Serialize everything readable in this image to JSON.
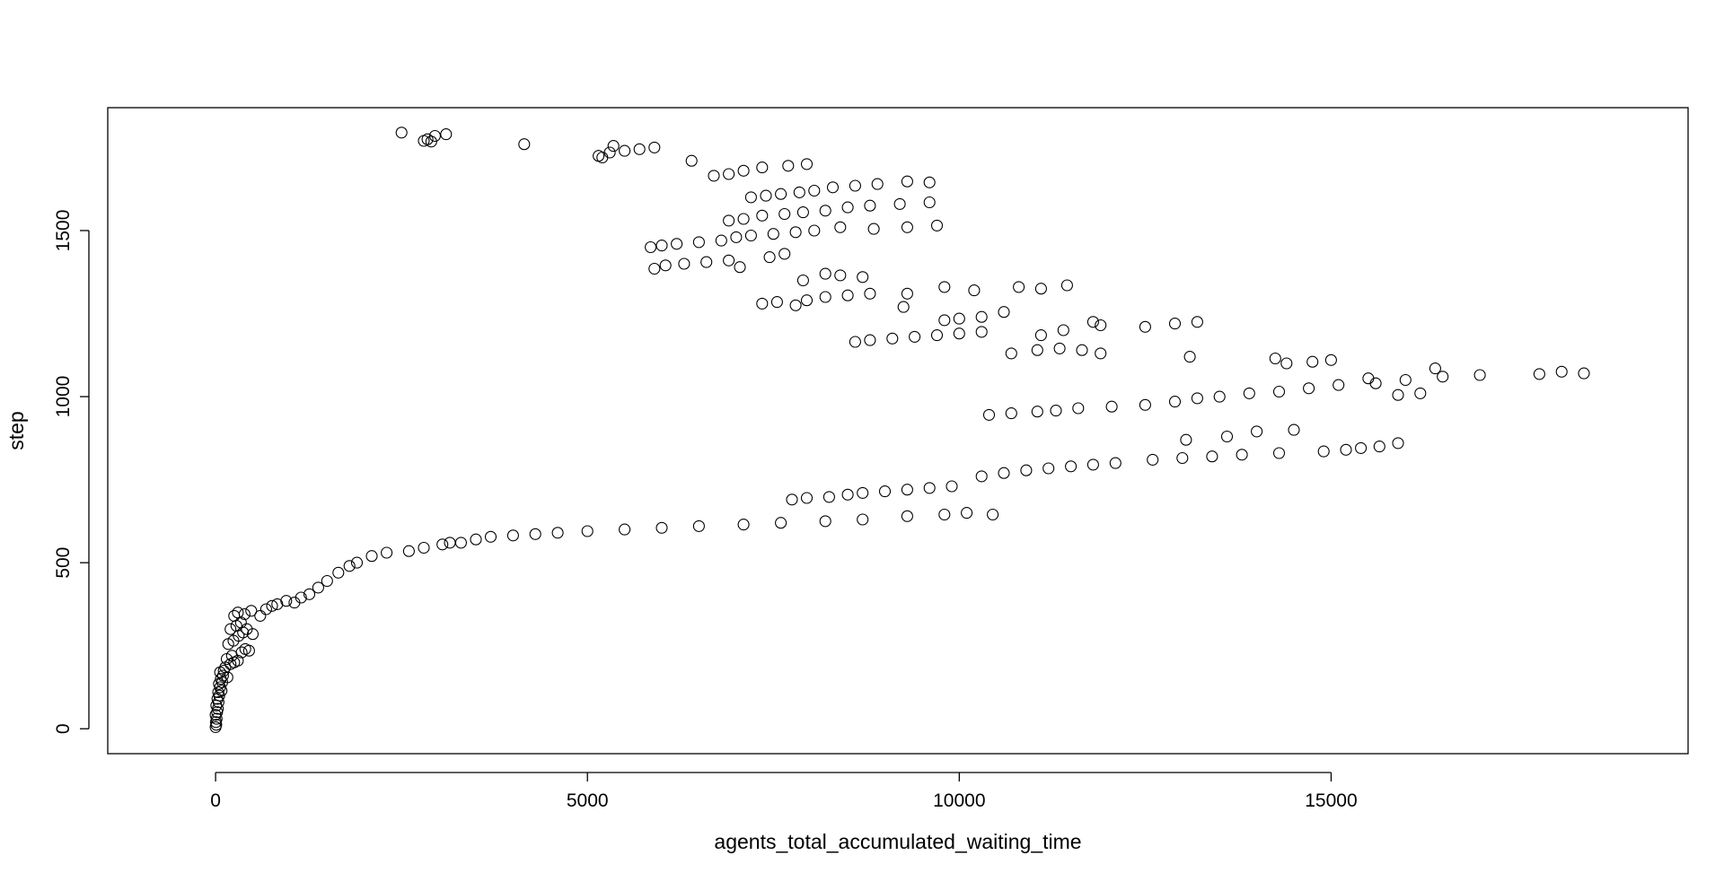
{
  "chart_data": {
    "type": "scatter",
    "title": "",
    "xlabel": "agents_total_accumulated_waiting_time",
    "ylabel": "step",
    "xlim": [
      -1450,
      19800
    ],
    "ylim": [
      -75,
      1870
    ],
    "xticks": [
      0,
      5000,
      10000,
      15000
    ],
    "xtick_labels": [
      "0",
      "5000",
      "10000",
      "15000"
    ],
    "yticks": [
      0,
      500,
      1000,
      1500
    ],
    "ytick_labels": [
      "0",
      "500",
      "1000",
      "1500"
    ],
    "grid": false,
    "legend": "none",
    "marker": "open-circle",
    "colors": {
      "points": "#000000",
      "axes": "#000000",
      "background": "#ffffff"
    },
    "series": [
      {
        "points": [
          [
            0,
            5
          ],
          [
            10,
            12
          ],
          [
            5,
            20
          ],
          [
            15,
            30
          ],
          [
            0,
            42
          ],
          [
            20,
            50
          ],
          [
            30,
            60
          ],
          [
            10,
            70
          ],
          [
            40,
            80
          ],
          [
            25,
            90
          ],
          [
            50,
            100
          ],
          [
            35,
            110
          ],
          [
            80,
            115
          ],
          [
            60,
            125
          ],
          [
            45,
            135
          ],
          [
            90,
            140
          ],
          [
            70,
            150
          ],
          [
            100,
            160
          ],
          [
            60,
            170
          ],
          [
            110,
            175
          ],
          [
            160,
            155
          ],
          [
            130,
            185
          ],
          [
            200,
            195
          ],
          [
            150,
            210
          ],
          [
            250,
            200
          ],
          [
            300,
            205
          ],
          [
            220,
            220
          ],
          [
            350,
            230
          ],
          [
            400,
            240
          ],
          [
            450,
            235
          ],
          [
            170,
            255
          ],
          [
            240,
            265
          ],
          [
            310,
            280
          ],
          [
            370,
            290
          ],
          [
            420,
            300
          ],
          [
            500,
            285
          ],
          [
            200,
            300
          ],
          [
            280,
            310
          ],
          [
            340,
            320
          ],
          [
            250,
            340
          ],
          [
            300,
            350
          ],
          [
            390,
            345
          ],
          [
            480,
            355
          ],
          [
            600,
            340
          ],
          [
            680,
            360
          ],
          [
            760,
            370
          ],
          [
            830,
            375
          ],
          [
            950,
            385
          ],
          [
            1060,
            380
          ],
          [
            1150,
            395
          ],
          [
            1260,
            405
          ],
          [
            1380,
            425
          ],
          [
            1500,
            445
          ],
          [
            1650,
            470
          ],
          [
            1800,
            490
          ],
          [
            1900,
            500
          ],
          [
            2100,
            520
          ],
          [
            2300,
            530
          ],
          [
            2600,
            535
          ],
          [
            2800,
            545
          ],
          [
            3050,
            555
          ],
          [
            3150,
            560
          ],
          [
            3300,
            560
          ],
          [
            3500,
            570
          ],
          [
            3700,
            578
          ],
          [
            4000,
            582
          ],
          [
            4300,
            586
          ],
          [
            4600,
            590
          ],
          [
            5000,
            595
          ],
          [
            5500,
            600
          ],
          [
            6000,
            605
          ],
          [
            6500,
            610
          ],
          [
            7100,
            615
          ],
          [
            7600,
            620
          ],
          [
            8200,
            625
          ],
          [
            8700,
            630
          ],
          [
            9300,
            640
          ],
          [
            9800,
            645
          ],
          [
            10100,
            650
          ],
          [
            10450,
            645
          ],
          [
            7750,
            690
          ],
          [
            7950,
            695
          ],
          [
            8250,
            698
          ],
          [
            8500,
            705
          ],
          [
            8700,
            710
          ],
          [
            9000,
            715
          ],
          [
            9300,
            720
          ],
          [
            9600,
            725
          ],
          [
            9900,
            730
          ],
          [
            10300,
            760
          ],
          [
            10600,
            770
          ],
          [
            10900,
            778
          ],
          [
            11200,
            784
          ],
          [
            11500,
            790
          ],
          [
            11800,
            795
          ],
          [
            12100,
            800
          ],
          [
            12600,
            810
          ],
          [
            13000,
            815
          ],
          [
            13400,
            820
          ],
          [
            13800,
            825
          ],
          [
            14300,
            830
          ],
          [
            14900,
            835
          ],
          [
            15200,
            840
          ],
          [
            15400,
            845
          ],
          [
            15650,
            850
          ],
          [
            15900,
            860
          ],
          [
            13050,
            870
          ],
          [
            13600,
            880
          ],
          [
            14000,
            895
          ],
          [
            14500,
            900
          ],
          [
            10400,
            945
          ],
          [
            10700,
            950
          ],
          [
            11050,
            955
          ],
          [
            11300,
            958
          ],
          [
            11600,
            965
          ],
          [
            12050,
            970
          ],
          [
            12500,
            975
          ],
          [
            12900,
            985
          ],
          [
            13200,
            995
          ],
          [
            13500,
            1000
          ],
          [
            13900,
            1010
          ],
          [
            14300,
            1015
          ],
          [
            14700,
            1025
          ],
          [
            15100,
            1035
          ],
          [
            15600,
            1040
          ],
          [
            16000,
            1050
          ],
          [
            16500,
            1060
          ],
          [
            17000,
            1065
          ],
          [
            17800,
            1068
          ],
          [
            18100,
            1075
          ],
          [
            18400,
            1070
          ],
          [
            16400,
            1085
          ],
          [
            16200,
            1010
          ],
          [
            15900,
            1005
          ],
          [
            15500,
            1055
          ],
          [
            14400,
            1100
          ],
          [
            14750,
            1105
          ],
          [
            15000,
            1110
          ],
          [
            14250,
            1115
          ],
          [
            13100,
            1120
          ],
          [
            12500,
            1210
          ],
          [
            12900,
            1220
          ],
          [
            13200,
            1225
          ],
          [
            11900,
            1215
          ],
          [
            11800,
            1225
          ],
          [
            11400,
            1200
          ],
          [
            11100,
            1185
          ],
          [
            10600,
            1255
          ],
          [
            10300,
            1240
          ],
          [
            10000,
            1235
          ],
          [
            9800,
            1230
          ],
          [
            8600,
            1165
          ],
          [
            8800,
            1170
          ],
          [
            9100,
            1175
          ],
          [
            9400,
            1180
          ],
          [
            9700,
            1185
          ],
          [
            10000,
            1190
          ],
          [
            10300,
            1195
          ],
          [
            10700,
            1130
          ],
          [
            11050,
            1140
          ],
          [
            11350,
            1145
          ],
          [
            11650,
            1140
          ],
          [
            11900,
            1130
          ],
          [
            11100,
            1325
          ],
          [
            10800,
            1330
          ],
          [
            11450,
            1335
          ],
          [
            10200,
            1320
          ],
          [
            9800,
            1330
          ],
          [
            9300,
            1310
          ],
          [
            9250,
            1270
          ],
          [
            8800,
            1310
          ],
          [
            8500,
            1305
          ],
          [
            8200,
            1300
          ],
          [
            7950,
            1290
          ],
          [
            7800,
            1275
          ],
          [
            7550,
            1285
          ],
          [
            7350,
            1280
          ],
          [
            5900,
            1385
          ],
          [
            6050,
            1395
          ],
          [
            6300,
            1400
          ],
          [
            6600,
            1405
          ],
          [
            6900,
            1410
          ],
          [
            7050,
            1390
          ],
          [
            7450,
            1420
          ],
          [
            7650,
            1430
          ],
          [
            7900,
            1350
          ],
          [
            8200,
            1370
          ],
          [
            8400,
            1365
          ],
          [
            8700,
            1360
          ],
          [
            5850,
            1450
          ],
          [
            6000,
            1455
          ],
          [
            6200,
            1460
          ],
          [
            6500,
            1465
          ],
          [
            6800,
            1470
          ],
          [
            7000,
            1480
          ],
          [
            7200,
            1485
          ],
          [
            7500,
            1490
          ],
          [
            7800,
            1495
          ],
          [
            8050,
            1500
          ],
          [
            8400,
            1510
          ],
          [
            8850,
            1505
          ],
          [
            9300,
            1510
          ],
          [
            9700,
            1515
          ],
          [
            6900,
            1530
          ],
          [
            7100,
            1535
          ],
          [
            7350,
            1545
          ],
          [
            7650,
            1550
          ],
          [
            7900,
            1555
          ],
          [
            8200,
            1560
          ],
          [
            8500,
            1570
          ],
          [
            8800,
            1575
          ],
          [
            9200,
            1580
          ],
          [
            9600,
            1585
          ],
          [
            6700,
            1665
          ],
          [
            6900,
            1670
          ],
          [
            7100,
            1680
          ],
          [
            7350,
            1690
          ],
          [
            7700,
            1695
          ],
          [
            7950,
            1700
          ],
          [
            8300,
            1630
          ],
          [
            8600,
            1635
          ],
          [
            8900,
            1640
          ],
          [
            9300,
            1648
          ],
          [
            9600,
            1645
          ],
          [
            7600,
            1610
          ],
          [
            7850,
            1615
          ],
          [
            8050,
            1620
          ],
          [
            7200,
            1600
          ],
          [
            7400,
            1605
          ],
          [
            6400,
            1710
          ],
          [
            5900,
            1750
          ],
          [
            5700,
            1745
          ],
          [
            5500,
            1740
          ],
          [
            5300,
            1735
          ],
          [
            5150,
            1725
          ],
          [
            5200,
            1720
          ],
          [
            5350,
            1755
          ],
          [
            4150,
            1760
          ],
          [
            3100,
            1790
          ],
          [
            2950,
            1785
          ],
          [
            2850,
            1775
          ],
          [
            2800,
            1770
          ],
          [
            2900,
            1768
          ],
          [
            2500,
            1795
          ]
        ]
      }
    ]
  }
}
